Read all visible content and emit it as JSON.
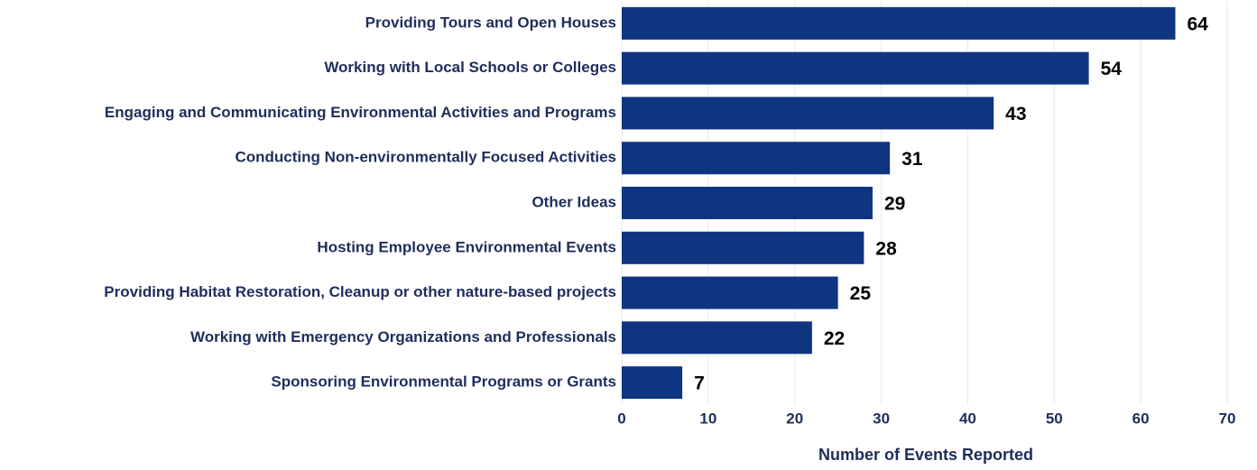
{
  "chart_data": {
    "type": "bar",
    "orientation": "horizontal",
    "x_label": "Number of Events Reported",
    "categories": [
      "Providing Tours and Open Houses",
      "Working with Local Schools or Colleges",
      "Engaging and Communicating Environmental Activities and Programs",
      "Conducting Non-environmentally Focused Activities",
      "Other Ideas",
      "Hosting Employee Environmental Events",
      "Providing Habitat Restoration, Cleanup or other nature-based projects",
      "Working with Emergency Organizations and Professionals",
      "Sponsoring Environmental Programs or Grants"
    ],
    "values": [
      64,
      54,
      43,
      31,
      29,
      28,
      25,
      22,
      7
    ],
    "color": "#0f3580",
    "xlim": [
      0,
      70
    ],
    "xticks": [
      0,
      10,
      20,
      30,
      40,
      50,
      60,
      70
    ],
    "grid": true
  }
}
